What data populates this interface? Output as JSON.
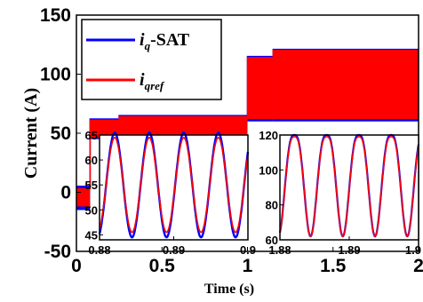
{
  "chart_data": {
    "main": {
      "type": "line",
      "xlabel": "Time (s)",
      "ylabel": "Current (A)",
      "xlim": [
        0,
        2
      ],
      "ylim": [
        -50,
        150
      ],
      "xticks": [
        "0",
        "0.5",
        "1",
        "1.5",
        "2"
      ],
      "yticks": [
        "-50",
        "0",
        "50",
        "100",
        "150"
      ],
      "legend": {
        "placement": "top-left",
        "entries": [
          {
            "main": "i",
            "sub": "q",
            "suffix": "-SAT",
            "color": "#0000ff"
          },
          {
            "main": "i",
            "sub": "qref",
            "suffix": "",
            "color": "#ff0000"
          }
        ]
      },
      "series": [
        {
          "name": "i_q-SAT",
          "color": "#0000ff",
          "segments": [
            {
              "x0": 0.0,
              "x1": 0.08,
              "ymin": -15,
              "ymax": 5
            },
            {
              "x0": 0.08,
              "x1": 0.25,
              "ymin": 45,
              "ymax": 62
            },
            {
              "x0": 0.25,
              "x1": 1.0,
              "ymin": 45,
              "ymax": 65
            },
            {
              "x0": 1.0,
              "x1": 1.15,
              "ymin": 60,
              "ymax": 115
            },
            {
              "x0": 1.15,
              "x1": 2.0,
              "ymin": 60,
              "ymax": 121
            }
          ]
        },
        {
          "name": "i_qref",
          "color": "#ff0000",
          "segments": [
            {
              "x0": 0.0,
              "x1": 0.08,
              "ymin": -12,
              "ymax": 3
            },
            {
              "x0": 0.08,
              "x1": 0.25,
              "ymin": 46,
              "ymax": 61
            },
            {
              "x0": 0.25,
              "x1": 1.0,
              "ymin": 46,
              "ymax": 64
            },
            {
              "x0": 1.0,
              "x1": 1.15,
              "ymin": 62,
              "ymax": 114
            },
            {
              "x0": 1.15,
              "x1": 2.0,
              "ymin": 62,
              "ymax": 120
            }
          ]
        }
      ]
    },
    "inset_left": {
      "type": "line",
      "xlim": [
        0.88,
        0.9
      ],
      "ylim": [
        44,
        65
      ],
      "xticks": [
        "0.88",
        "0.89",
        "0.9"
      ],
      "yticks": [
        "45",
        "50",
        "55",
        "60",
        "65"
      ],
      "series": [
        {
          "name": "i_q-SAT",
          "color": "#0000ff",
          "mean": 55,
          "amplitude": 10.5,
          "cycles": 4.3,
          "phase": -1.2
        },
        {
          "name": "i_qref",
          "color": "#ff0000",
          "mean": 55,
          "amplitude": 9.5,
          "cycles": 4.3,
          "phase": -1.2
        }
      ]
    },
    "inset_right": {
      "type": "line",
      "xlim": [
        1.88,
        1.9
      ],
      "ylim": [
        60,
        120
      ],
      "xticks": [
        "1.88",
        "1.89",
        "1.9"
      ],
      "yticks": [
        "60",
        "80",
        "100",
        "120"
      ],
      "series": [
        {
          "name": "i_q-SAT",
          "color": "#0000ff",
          "min": 62,
          "max": 120,
          "cycles": 4.3
        },
        {
          "name": "i_qref",
          "color": "#ff0000",
          "min": 62,
          "max": 119,
          "cycles": 4.3
        }
      ]
    }
  }
}
